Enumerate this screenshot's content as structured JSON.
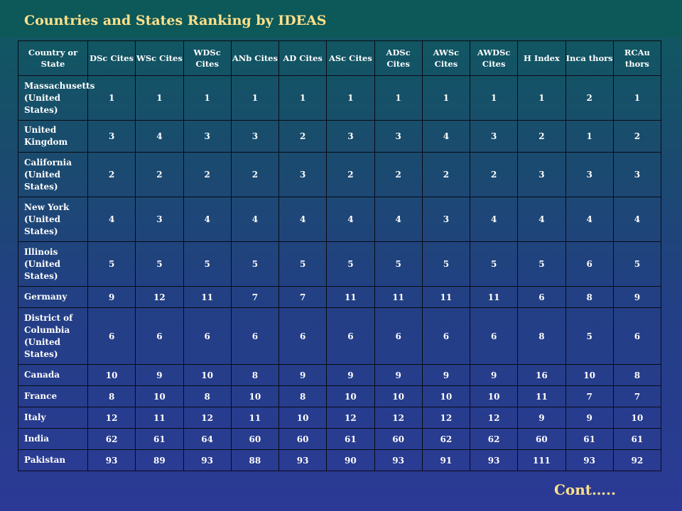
{
  "title": "Countries and States Ranking by IDEAS",
  "headers": [
    "Country or State",
    "DSc Cites",
    "WSc Cites",
    "WDSc Cites",
    "ANb Cites",
    "AD Cites",
    "ASc Cites",
    "ADSc Cites",
    "AWSc Cites",
    "AWDSc Cites",
    "H Index",
    "Inca thors",
    "RCAu thors"
  ],
  "rows": [
    {
      "name": "Massachusetts (United States)",
      "values": [
        "1",
        "1",
        "1",
        "1",
        "1",
        "1",
        "1",
        "1",
        "1",
        "1",
        "2",
        "1"
      ]
    },
    {
      "name": "United Kingdom",
      "values": [
        "3",
        "4",
        "3",
        "3",
        "2",
        "3",
        "3",
        "4",
        "3",
        "2",
        "1",
        "2"
      ]
    },
    {
      "name": "California (United States)",
      "values": [
        "2",
        "2",
        "2",
        "2",
        "3",
        "2",
        "2",
        "2",
        "2",
        "3",
        "3",
        "3"
      ]
    },
    {
      "name": "New York (United States)",
      "values": [
        "4",
        "3",
        "4",
        "4",
        "4",
        "4",
        "4",
        "3",
        "4",
        "4",
        "4",
        "4"
      ]
    },
    {
      "name": "Illinois (United States)",
      "values": [
        "5",
        "5",
        "5",
        "5",
        "5",
        "5",
        "5",
        "5",
        "5",
        "5",
        "6",
        "5"
      ]
    },
    {
      "name": "Germany",
      "values": [
        "9",
        "12",
        "11",
        "7",
        "7",
        "11",
        "11",
        "11",
        "11",
        "6",
        "8",
        "9"
      ]
    },
    {
      "name": "District of Columbia (United States)",
      "values": [
        "6",
        "6",
        "6",
        "6",
        "6",
        "6",
        "6",
        "6",
        "6",
        "8",
        "5",
        "6"
      ]
    },
    {
      "name": "Canada",
      "values": [
        "10",
        "9",
        "10",
        "8",
        "9",
        "9",
        "9",
        "9",
        "9",
        "16",
        "10",
        "8"
      ]
    },
    {
      "name": "France",
      "values": [
        "8",
        "10",
        "8",
        "10",
        "8",
        "10",
        "10",
        "10",
        "10",
        "11",
        "7",
        "7"
      ]
    },
    {
      "name": "Italy",
      "values": [
        "12",
        "11",
        "12",
        "11",
        "10",
        "12",
        "12",
        "12",
        "12",
        "9",
        "9",
        "10"
      ]
    },
    {
      "name": "India",
      "values": [
        "62",
        "61",
        "64",
        "60",
        "60",
        "61",
        "60",
        "62",
        "62",
        "60",
        "61",
        "61"
      ]
    },
    {
      "name": "Pakistan",
      "values": [
        "93",
        "89",
        "93",
        "88",
        "93",
        "90",
        "93",
        "91",
        "93",
        "111",
        "93",
        "92"
      ]
    }
  ],
  "footer": "Cont….."
}
